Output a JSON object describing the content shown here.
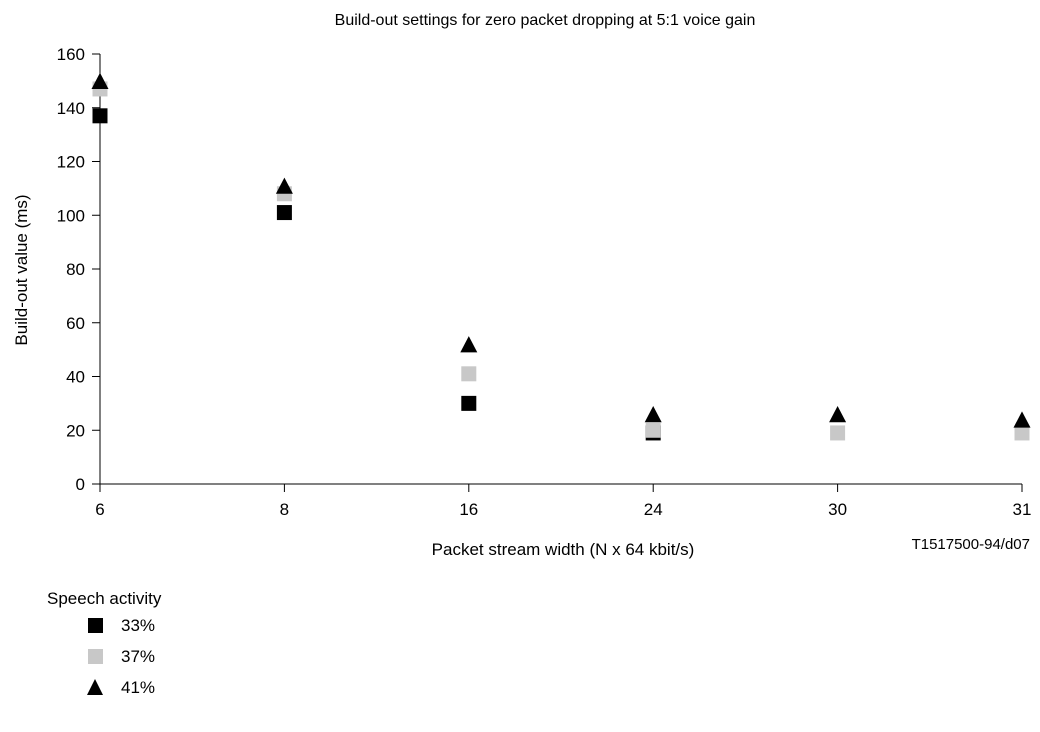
{
  "chart_data": {
    "type": "scatter",
    "title": "Build-out settings for zero packet dropping at 5:1 voice gain",
    "xlabel": "Packet stream width (N x 64 kbit/s)",
    "ylabel": "Build-out value (ms)",
    "categories": [
      "6",
      "8",
      "16",
      "24",
      "30",
      "31"
    ],
    "ylim": [
      0,
      160
    ],
    "yticks": [
      0,
      20,
      40,
      60,
      80,
      100,
      120,
      140,
      160
    ],
    "grid": false,
    "series": [
      {
        "name": "33%",
        "marker": "square",
        "color": "#000000",
        "values": [
          137,
          101,
          30,
          19,
          null,
          null
        ]
      },
      {
        "name": "37%",
        "marker": "square",
        "color": "#c8c8c8",
        "values": [
          147,
          108,
          41,
          20,
          19,
          19
        ]
      },
      {
        "name": "41%",
        "marker": "triangle",
        "color": "#000000",
        "values": [
          150,
          111,
          52,
          26,
          26,
          24
        ]
      }
    ],
    "legend": {
      "title": "Speech activity",
      "placement": "bottom-left"
    },
    "figure_id": "T1517500-94/d07"
  }
}
